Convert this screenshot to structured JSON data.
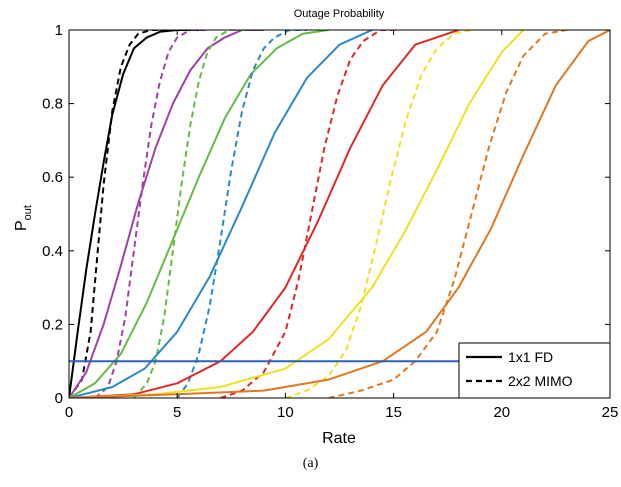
{
  "chart_data": {
    "type": "line",
    "title": "Outage Probability",
    "xlabel": "Rate",
    "ylabel_main": "P",
    "ylabel_sub": "out",
    "xlim": [
      0,
      25
    ],
    "ylim": [
      0,
      1
    ],
    "xticks": [
      0,
      5,
      10,
      15,
      20,
      25
    ],
    "yticks": [
      0,
      0.2,
      0.4,
      0.6,
      0.8,
      1
    ],
    "grid": false,
    "legend": {
      "placement": "bottom-right",
      "entries": [
        {
          "label": "1x1 FD",
          "style": "solid"
        },
        {
          "label": "2x2 MIMO",
          "style": "dashed"
        }
      ]
    },
    "reference_line": {
      "y": 0.1,
      "color": "#3060b8"
    },
    "series": [
      {
        "color": "#000000",
        "style": "solid",
        "x": [
          0,
          0.4,
          0.8,
          1.2,
          1.6,
          2.0,
          2.5,
          3.0,
          3.6,
          4.2,
          5.0,
          6.0
        ],
        "y": [
          0,
          0.18,
          0.35,
          0.5,
          0.64,
          0.77,
          0.88,
          0.95,
          0.98,
          0.995,
          1,
          1
        ]
      },
      {
        "color": "#000000",
        "style": "dashed",
        "x": [
          0,
          0.6,
          1.0,
          1.3,
          1.6,
          2.0,
          2.4,
          2.8,
          3.2,
          3.8,
          4.5
        ],
        "y": [
          0,
          0.05,
          0.18,
          0.38,
          0.58,
          0.78,
          0.9,
          0.96,
          0.99,
          1,
          1
        ]
      },
      {
        "color": "#a040a8",
        "style": "solid",
        "x": [
          0,
          0.8,
          1.6,
          2.4,
          3.2,
          4.0,
          4.8,
          5.6,
          6.4,
          7.2,
          8.0,
          9.0
        ],
        "y": [
          0,
          0.07,
          0.2,
          0.36,
          0.53,
          0.68,
          0.8,
          0.89,
          0.95,
          0.98,
          1,
          1
        ]
      },
      {
        "color": "#a040a8",
        "style": "dashed",
        "x": [
          1.2,
          1.8,
          2.2,
          2.6,
          3.0,
          3.4,
          3.8,
          4.2,
          4.6,
          5.0,
          5.6,
          6.4
        ],
        "y": [
          0,
          0.03,
          0.1,
          0.22,
          0.4,
          0.58,
          0.74,
          0.86,
          0.94,
          0.98,
          1,
          1
        ]
      },
      {
        "color": "#66bb44",
        "style": "solid",
        "x": [
          0,
          1.2,
          2.4,
          3.6,
          4.8,
          6.0,
          7.2,
          8.4,
          9.6,
          10.8,
          12.0
        ],
        "y": [
          0,
          0.04,
          0.12,
          0.26,
          0.43,
          0.6,
          0.76,
          0.88,
          0.95,
          0.99,
          1
        ]
      },
      {
        "color": "#66bb44",
        "style": "dashed",
        "x": [
          3.0,
          3.6,
          4.0,
          4.4,
          4.8,
          5.2,
          5.6,
          6.0,
          6.4,
          6.8,
          7.4,
          8.2
        ],
        "y": [
          0,
          0.04,
          0.1,
          0.22,
          0.4,
          0.58,
          0.74,
          0.86,
          0.94,
          0.98,
          1,
          1
        ]
      },
      {
        "color": "#2a8ac8",
        "style": "solid",
        "x": [
          0,
          2.0,
          3.5,
          5.0,
          6.5,
          8.0,
          9.5,
          11.0,
          12.5,
          14.0
        ],
        "y": [
          0,
          0.03,
          0.08,
          0.18,
          0.33,
          0.52,
          0.72,
          0.87,
          0.96,
          1
        ]
      },
      {
        "color": "#2a8ac8",
        "style": "dashed",
        "x": [
          5.0,
          5.5,
          6.0,
          6.5,
          7.0,
          7.5,
          8.0,
          8.5,
          9.0,
          9.5,
          10.2,
          11.0
        ],
        "y": [
          0,
          0.04,
          0.12,
          0.25,
          0.43,
          0.62,
          0.78,
          0.89,
          0.95,
          0.98,
          1,
          1
        ]
      },
      {
        "color": "#e02828",
        "style": "solid",
        "x": [
          0,
          3.0,
          5.0,
          7.0,
          8.5,
          10.0,
          11.5,
          13.0,
          14.5,
          16.0,
          18.0
        ],
        "y": [
          0,
          0.01,
          0.04,
          0.1,
          0.18,
          0.3,
          0.48,
          0.68,
          0.85,
          0.96,
          1
        ]
      },
      {
        "color": "#e02828",
        "style": "dashed",
        "x": [
          7.0,
          8.0,
          9.0,
          10.0,
          10.6,
          11.2,
          11.8,
          12.4,
          13.0,
          13.6,
          14.4,
          15.2
        ],
        "y": [
          0,
          0.02,
          0.07,
          0.18,
          0.32,
          0.5,
          0.68,
          0.82,
          0.92,
          0.97,
          1,
          1
        ]
      },
      {
        "color": "#f0e020",
        "style": "solid",
        "x": [
          0,
          4.0,
          7.0,
          10.0,
          12.0,
          14.0,
          15.5,
          17.0,
          18.5,
          20.0,
          21.0
        ],
        "y": [
          0,
          0.01,
          0.03,
          0.08,
          0.16,
          0.3,
          0.45,
          0.62,
          0.8,
          0.94,
          1
        ]
      },
      {
        "color": "#f0e020",
        "style": "dashed",
        "x": [
          10.0,
          11.0,
          12.0,
          12.8,
          13.5,
          14.2,
          14.9,
          15.6,
          16.3,
          17.0,
          17.8,
          18.6
        ],
        "y": [
          0,
          0.02,
          0.06,
          0.13,
          0.25,
          0.42,
          0.6,
          0.76,
          0.88,
          0.95,
          0.99,
          1
        ]
      },
      {
        "color": "#e07820",
        "style": "solid",
        "x": [
          0,
          5.0,
          9.0,
          12.0,
          14.5,
          16.5,
          18.0,
          19.5,
          21.0,
          22.5,
          24.0,
          25.0
        ],
        "y": [
          0,
          0.01,
          0.02,
          0.05,
          0.1,
          0.18,
          0.3,
          0.46,
          0.66,
          0.85,
          0.97,
          1
        ]
      },
      {
        "color": "#e07820",
        "style": "dashed",
        "x": [
          12.0,
          13.5,
          15.0,
          16.0,
          17.0,
          17.8,
          18.6,
          19.4,
          20.2,
          21.0,
          22.0,
          23.0
        ],
        "y": [
          0,
          0.02,
          0.05,
          0.1,
          0.18,
          0.32,
          0.5,
          0.68,
          0.83,
          0.93,
          0.99,
          1
        ]
      }
    ]
  },
  "caption": "(a)"
}
